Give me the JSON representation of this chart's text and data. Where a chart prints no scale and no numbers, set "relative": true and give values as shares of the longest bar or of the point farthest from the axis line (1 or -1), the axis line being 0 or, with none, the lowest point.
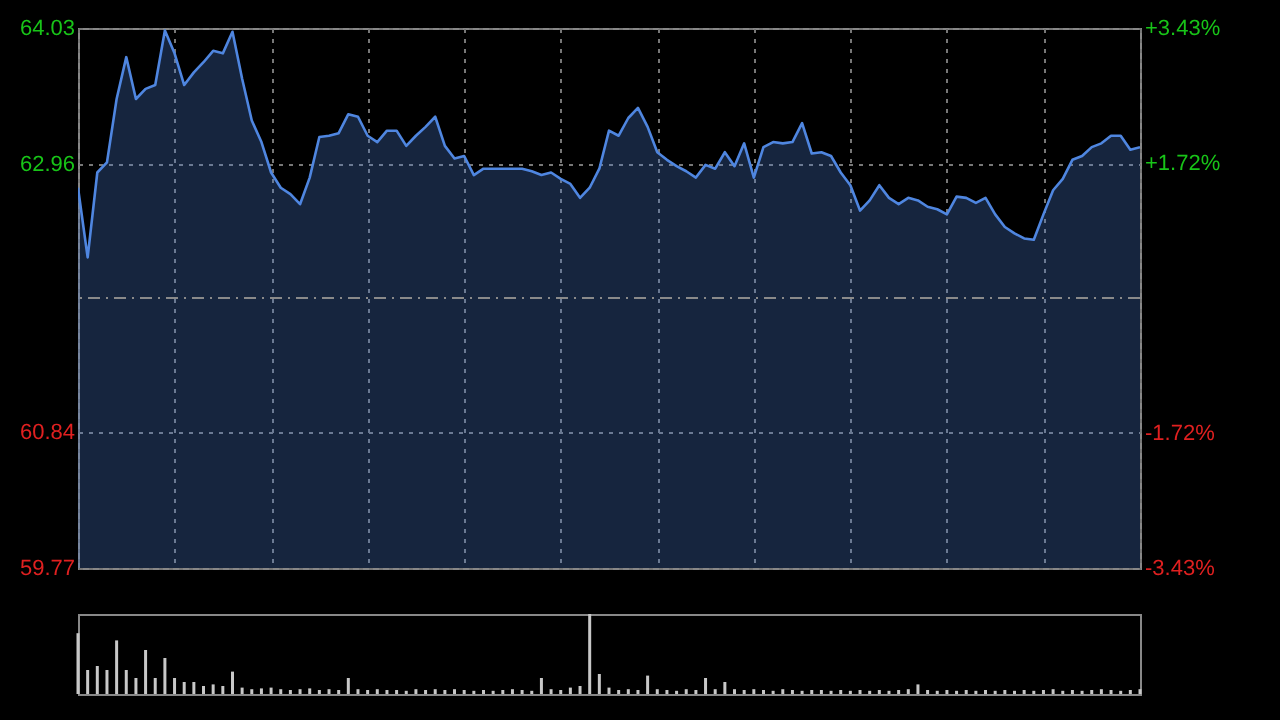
{
  "chart_data": [
    {
      "type": "area",
      "color": "#4f86e0",
      "categories": [
        null,
        null,
        null,
        null,
        null,
        null,
        null,
        null,
        null,
        null,
        null,
        null,
        null,
        null,
        null,
        null,
        null,
        null,
        null,
        null,
        null,
        null,
        null,
        null,
        null,
        null,
        null,
        null,
        null,
        null,
        null,
        null,
        null,
        null,
        null,
        null,
        null,
        null,
        null,
        null,
        null,
        null,
        null,
        null,
        null,
        null,
        null,
        null,
        null,
        null,
        null,
        null,
        null,
        null,
        null,
        null,
        null,
        null,
        null,
        null,
        null,
        null,
        null,
        null,
        null,
        null,
        null,
        null,
        null,
        null,
        null,
        null,
        null,
        null,
        null,
        null,
        null,
        null,
        null,
        null,
        null,
        null,
        null,
        null,
        null,
        null,
        null,
        null,
        null,
        null,
        null,
        null,
        null,
        null,
        null,
        null,
        null,
        null,
        null,
        null,
        null,
        null,
        null,
        null,
        null,
        null,
        null,
        null,
        null,
        null,
        null
      ],
      "values": [
        62.77,
        62.22,
        62.89,
        62.97,
        63.47,
        63.8,
        63.47,
        63.55,
        63.58,
        64.01,
        63.83,
        63.58,
        63.68,
        63.76,
        63.85,
        63.83,
        64.0,
        63.63,
        63.3,
        63.13,
        62.89,
        62.77,
        62.72,
        62.64,
        62.85,
        63.17,
        63.18,
        63.2,
        63.35,
        63.33,
        63.18,
        63.13,
        63.22,
        63.22,
        63.1,
        63.18,
        63.25,
        63.33,
        63.1,
        63.0,
        63.02,
        62.87,
        62.92,
        62.92,
        62.92,
        62.92,
        62.92,
        62.9,
        62.87,
        62.89,
        62.84,
        62.8,
        62.69,
        62.77,
        62.92,
        63.22,
        63.18,
        63.32,
        63.4,
        63.25,
        63.05,
        62.99,
        62.94,
        62.9,
        62.85,
        62.95,
        62.92,
        63.05,
        62.94,
        63.12,
        62.85,
        63.09,
        63.13,
        63.12,
        63.13,
        63.28,
        63.04,
        63.05,
        63.02,
        62.89,
        62.79,
        62.59,
        62.67,
        62.79,
        62.69,
        62.64,
        62.69,
        62.67,
        62.62,
        62.6,
        62.56,
        62.7,
        62.69,
        62.65,
        62.69,
        62.56,
        62.46,
        62.41,
        62.37,
        62.36,
        62.56,
        62.75,
        62.84,
        62.99,
        63.02,
        63.09,
        63.12,
        63.18,
        63.18,
        63.07,
        63.09
      ],
      "ylim": [
        59.77,
        64.03
      ],
      "yticks": [
        64.03,
        62.96,
        60.84,
        59.77
      ],
      "y2lim": [
        -3.43,
        3.43
      ],
      "y2ticks": [
        {
          "value": 3.43,
          "label": "+3.43%"
        },
        {
          "value": 1.72,
          "label": "+1.72%"
        },
        {
          "value": -1.72,
          "label": "-1.72%"
        },
        {
          "value": -3.43,
          "label": "-3.43%"
        }
      ],
      "ref_lines": [
        {
          "axis": "y2",
          "value": 0,
          "color": "#8a8a8a",
          "line_style": "dashed"
        }
      ],
      "grid": true,
      "marker": "none"
    },
    {
      "type": "bar",
      "relative": true,
      "color": "#c8c8c8",
      "categories": [
        null,
        null,
        null,
        null,
        null,
        null,
        null,
        null,
        null,
        null,
        null,
        null,
        null,
        null,
        null,
        null,
        null,
        null,
        null,
        null,
        null,
        null,
        null,
        null,
        null,
        null,
        null,
        null,
        null,
        null,
        null,
        null,
        null,
        null,
        null,
        null,
        null,
        null,
        null,
        null,
        null,
        null,
        null,
        null,
        null,
        null,
        null,
        null,
        null,
        null,
        null,
        null,
        null,
        null,
        null,
        null,
        null,
        null,
        null,
        null,
        null,
        null,
        null,
        null,
        null,
        null,
        null,
        null,
        null,
        null,
        null,
        null,
        null,
        null,
        null,
        null,
        null,
        null,
        null,
        null,
        null,
        null,
        null,
        null,
        null,
        null,
        null,
        null,
        null,
        null,
        null,
        null,
        null,
        null,
        null,
        null,
        null,
        null,
        null,
        null,
        null,
        null,
        null,
        null,
        null,
        null,
        null,
        null,
        null,
        null,
        null
      ],
      "values": [
        0.76,
        0.3,
        0.35,
        0.3,
        0.67,
        0.3,
        0.2,
        0.55,
        0.2,
        0.45,
        0.2,
        0.15,
        0.15,
        0.1,
        0.12,
        0.1,
        0.28,
        0.08,
        0.06,
        0.07,
        0.08,
        0.06,
        0.05,
        0.06,
        0.07,
        0.05,
        0.06,
        0.05,
        0.2,
        0.06,
        0.05,
        0.06,
        0.05,
        0.05,
        0.04,
        0.06,
        0.05,
        0.06,
        0.05,
        0.06,
        0.05,
        0.04,
        0.05,
        0.04,
        0.05,
        0.06,
        0.05,
        0.04,
        0.2,
        0.06,
        0.05,
        0.08,
        0.1,
        1.0,
        0.25,
        0.08,
        0.05,
        0.06,
        0.05,
        0.23,
        0.06,
        0.05,
        0.04,
        0.06,
        0.05,
        0.2,
        0.06,
        0.15,
        0.06,
        0.05,
        0.06,
        0.05,
        0.04,
        0.06,
        0.05,
        0.04,
        0.05,
        0.05,
        0.04,
        0.05,
        0.04,
        0.05,
        0.04,
        0.05,
        0.04,
        0.05,
        0.06,
        0.12,
        0.05,
        0.04,
        0.05,
        0.04,
        0.05,
        0.04,
        0.05,
        0.04,
        0.05,
        0.04,
        0.05,
        0.04,
        0.05,
        0.06,
        0.04,
        0.05,
        0.04,
        0.05,
        0.06,
        0.05,
        0.04,
        0.05,
        0.06
      ]
    }
  ]
}
